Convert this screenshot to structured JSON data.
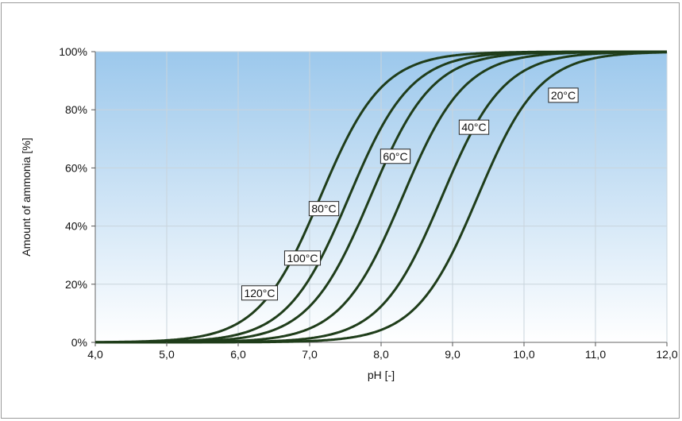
{
  "chart_data": {
    "type": "line",
    "title": "",
    "xlabel": "pH [-]",
    "ylabel": "Amount of ammonia [%]",
    "xlim": [
      4.0,
      12.0
    ],
    "ylim": [
      0,
      100
    ],
    "x_ticks": [
      "4,0",
      "5,0",
      "6,0",
      "7,0",
      "8,0",
      "9,0",
      "10,0",
      "11,0",
      "12,0"
    ],
    "y_ticks": [
      "0%",
      "20%",
      "40%",
      "60%",
      "80%",
      "100%"
    ],
    "grid": true,
    "legend": "none",
    "curve_color": "#1f3d1a",
    "background_gradient": [
      "#9cc8ec",
      "#ffffff"
    ],
    "series": [
      {
        "name": "120°C",
        "pKa": 7.15,
        "label": {
          "x": 6.3,
          "y": 17
        }
      },
      {
        "name": "100°C",
        "pKa": 7.55,
        "label": {
          "x": 6.9,
          "y": 29
        }
      },
      {
        "name": "80°C",
        "pKa": 7.85,
        "label": {
          "x": 7.2,
          "y": 46
        }
      },
      {
        "name": "60°C",
        "pKa": 8.3,
        "label": {
          "x": 8.2,
          "y": 64
        }
      },
      {
        "name": "40°C",
        "pKa": 8.85,
        "label": {
          "x": 9.3,
          "y": 74
        }
      },
      {
        "name": "20°C",
        "pKa": 9.35,
        "label": {
          "x": 10.55,
          "y": 85
        }
      }
    ]
  }
}
